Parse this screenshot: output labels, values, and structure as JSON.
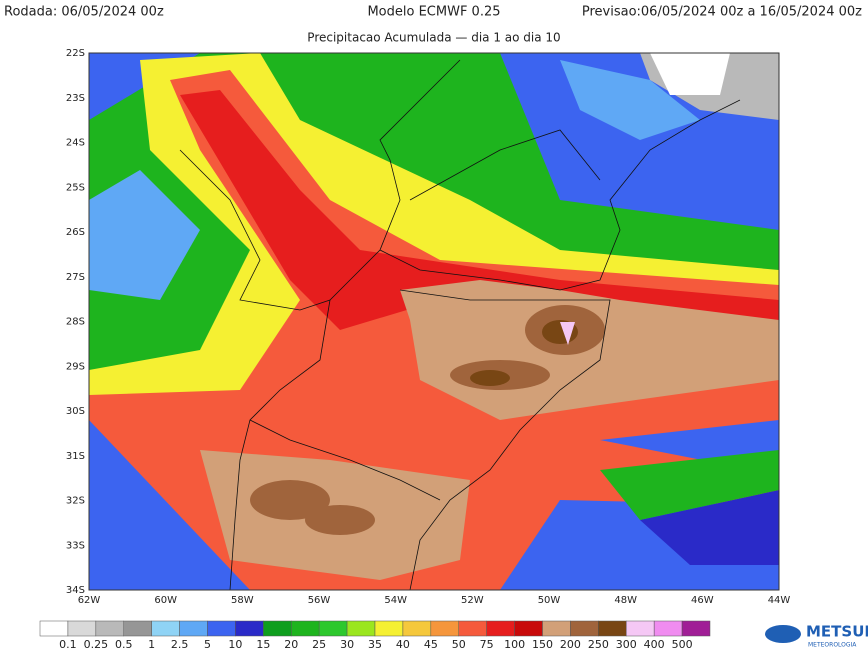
{
  "header": {
    "run": "Rodada: 06/05/2024 00z",
    "model": "Modelo ECMWF 0.25",
    "forecast": "Previsao:06/05/2024 00z a 16/05/2024 00z",
    "subtitle": "Precipitacao Acumulada — dia 1 ao dia 10"
  },
  "map": {
    "lat_labels": [
      "22S",
      "23S",
      "24S",
      "25S",
      "26S",
      "27S",
      "28S",
      "29S",
      "30S",
      "31S",
      "32S",
      "33S",
      "34S"
    ],
    "lon_labels": [
      "62W",
      "60W",
      "58W",
      "56W",
      "54W",
      "52W",
      "50W",
      "48W",
      "46W",
      "44W"
    ]
  },
  "colorbar": {
    "colors": [
      "#ffffff",
      "#d9d9d9",
      "#b9b9b9",
      "#969696",
      "#8fd3f5",
      "#5fa8f5",
      "#3c64f0",
      "#2a2ac8",
      "#0e9e1e",
      "#1eb41e",
      "#2dc82d",
      "#9be61e",
      "#f5f032",
      "#f5c83c",
      "#f5963c",
      "#f55a3c",
      "#e61e1e",
      "#c80a0a",
      "#d2a078",
      "#a0643c",
      "#784614",
      "#f5c8f5",
      "#f08cf0",
      "#a01e96"
    ],
    "labels": [
      "0.1",
      "0.25",
      "0.5",
      "1",
      "2.5",
      "5",
      "10",
      "15",
      "20",
      "25",
      "30",
      "35",
      "40",
      "45",
      "50",
      "75",
      "100",
      "150",
      "200",
      "250",
      "300",
      "400",
      "500"
    ]
  },
  "logo": {
    "name": "METSUL",
    "tagline": "METEOROLOGIA"
  }
}
